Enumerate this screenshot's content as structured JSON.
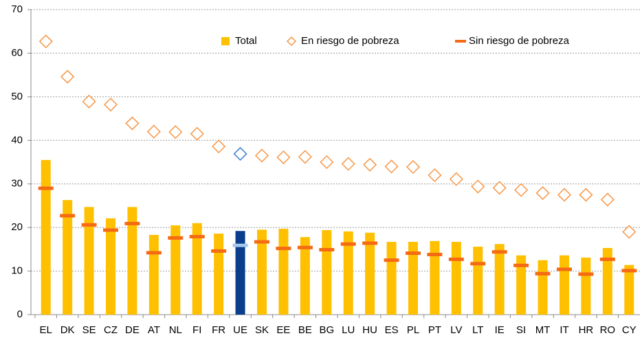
{
  "chart_data": {
    "type": "bar",
    "categories": [
      "EL",
      "DK",
      "SE",
      "CZ",
      "DE",
      "AT",
      "NL",
      "FI",
      "FR",
      "UE",
      "SK",
      "EE",
      "BE",
      "BG",
      "LU",
      "HU",
      "ES",
      "PL",
      "PT",
      "LV",
      "LT",
      "IE",
      "SI",
      "MT",
      "IT",
      "HR",
      "RO",
      "CY"
    ],
    "series": [
      {
        "name": "Total",
        "kind": "bar",
        "color": "#ffc000",
        "highlight_color": "#0a3d8c",
        "values": [
          35.5,
          26.3,
          24.7,
          22.1,
          24.7,
          18.3,
          20.5,
          21.0,
          18.6,
          19.2,
          19.5,
          19.7,
          17.8,
          19.4,
          19.1,
          18.8,
          16.7,
          16.7,
          16.9,
          16.7,
          15.6,
          16.2,
          13.6,
          12.5,
          13.6,
          13.1,
          15.3,
          11.4
        ]
      },
      {
        "name": "En riesgo de pobreza",
        "kind": "diamond",
        "color": "#f79646",
        "highlight_color": "#3a7fd5",
        "values": [
          62.7,
          54.6,
          48.9,
          48.2,
          43.9,
          42.0,
          41.9,
          41.5,
          38.6,
          36.9,
          36.5,
          36.1,
          36.2,
          35.0,
          34.6,
          34.4,
          34.0,
          33.9,
          32.0,
          31.1,
          29.4,
          29.1,
          28.6,
          27.9,
          27.5,
          27.5,
          26.4,
          19.0
        ]
      },
      {
        "name": "Sin riesgo de pobreza",
        "kind": "dash",
        "color": "#f56a14",
        "highlight_color": "#a5c8ec",
        "values": [
          29.0,
          22.7,
          20.6,
          19.4,
          20.9,
          14.2,
          17.6,
          17.9,
          14.6,
          15.9,
          16.7,
          15.2,
          15.4,
          14.9,
          16.2,
          16.4,
          12.5,
          14.1,
          13.8,
          12.7,
          11.7,
          14.4,
          11.3,
          9.4,
          10.4,
          9.3,
          12.7,
          10.1
        ]
      }
    ],
    "highlight": "UE",
    "ylim": [
      0,
      70
    ],
    "yticks": [
      0,
      10,
      20,
      30,
      40,
      50,
      60,
      70
    ],
    "grid": true,
    "legend": "top-right"
  }
}
